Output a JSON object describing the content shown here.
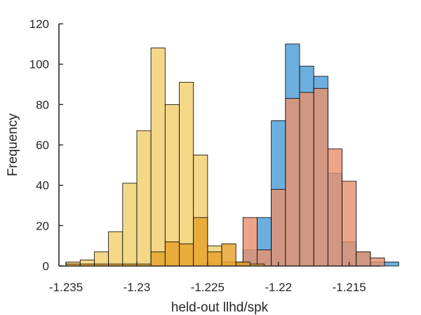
{
  "chart_data": {
    "type": "bar",
    "subtype": "overlapping-histogram",
    "xlabel": "held-out llhd/spk",
    "ylabel": "Frequency",
    "xlim": [
      -1.2355,
      -1.2128
    ],
    "ylim": [
      0,
      120
    ],
    "xticks": [
      -1.235,
      -1.23,
      -1.225,
      -1.22,
      -1.215
    ],
    "xtick_labels": [
      "-1.235",
      "-1.23",
      "-1.225",
      "-1.22",
      "-1.215"
    ],
    "yticks": [
      0,
      20,
      40,
      60,
      80,
      100,
      120
    ],
    "ytick_labels": [
      "0",
      "20",
      "40",
      "60",
      "80",
      "100",
      "120"
    ],
    "grid": false,
    "bin_width": 0.001,
    "series": [
      {
        "color": "#4c9dd8",
        "bin_start": -1.2235,
        "values": [
          0,
          8,
          24,
          72,
          110,
          99,
          94,
          46,
          12,
          7,
          2,
          2
        ]
      },
      {
        "color": "#e8916e",
        "bin_start": -1.2305,
        "values": [
          0,
          0,
          0,
          0,
          0,
          1,
          1,
          2,
          24,
          8,
          38,
          83,
          86,
          88,
          58,
          42,
          7,
          4
        ]
      },
      {
        "color": "#f2d06e",
        "bin_start": -1.235,
        "values": [
          2,
          3,
          7,
          17,
          41,
          67,
          108,
          80,
          91,
          55,
          10,
          2,
          1,
          0,
          0,
          0
        ]
      },
      {
        "color": "#e7a12a",
        "bin_start": -1.235,
        "values": [
          1,
          1,
          1,
          1,
          1,
          1,
          7,
          12,
          11,
          24,
          7,
          11,
          2,
          1,
          0,
          0,
          0
        ]
      }
    ]
  }
}
